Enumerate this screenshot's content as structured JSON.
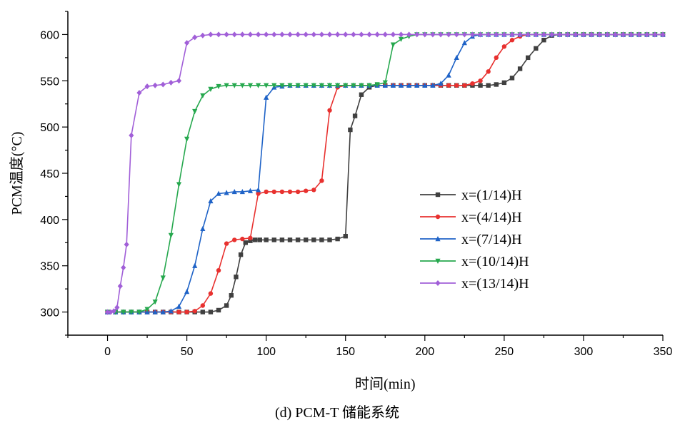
{
  "chart_data": {
    "type": "line",
    "title": "",
    "xlabel": "时间(min)",
    "ylabel": "PCM温度(°C)",
    "caption": "(d) PCM-T 储能系统",
    "xlim": [
      -25,
      350
    ],
    "ylim": [
      275,
      625
    ],
    "xticks": [
      0,
      50,
      100,
      150,
      200,
      250,
      300,
      350
    ],
    "yticks": [
      300,
      350,
      400,
      450,
      500,
      550,
      600
    ],
    "grid": false,
    "legend_position": "right-middle",
    "series": [
      {
        "name": "x=(1/14)H",
        "color": "#404040",
        "marker": "square",
        "x": [
          0,
          5,
          10,
          15,
          20,
          25,
          30,
          35,
          40,
          45,
          50,
          55,
          60,
          65,
          70,
          75,
          78,
          81,
          84,
          87,
          90,
          93,
          96,
          100,
          105,
          110,
          115,
          120,
          125,
          130,
          135,
          140,
          145,
          150,
          153,
          156,
          160,
          165,
          170,
          175,
          180,
          185,
          190,
          195,
          200,
          205,
          210,
          215,
          220,
          225,
          230,
          235,
          240,
          245,
          250,
          255,
          260,
          265,
          270,
          275,
          280,
          285,
          290,
          295,
          300,
          305,
          310,
          315,
          320,
          325,
          330,
          335,
          340,
          345,
          350
        ],
        "y": [
          300,
          300,
          300,
          300,
          300,
          300,
          300,
          300,
          300,
          300,
          300,
          300,
          300,
          300,
          302,
          307,
          318,
          338,
          362,
          375,
          377,
          378,
          378,
          378,
          378,
          378,
          378,
          378,
          378,
          378,
          378,
          378,
          379,
          382,
          497,
          512,
          535,
          543,
          545,
          545,
          545,
          545,
          545,
          545,
          545,
          545,
          545,
          545,
          545,
          545,
          545,
          545,
          545,
          546,
          548,
          553,
          563,
          575,
          585,
          594,
          599,
          600,
          600,
          600,
          600,
          600,
          600,
          600,
          600,
          600,
          600,
          600,
          600,
          600,
          600
        ]
      },
      {
        "name": "x=(4/14)H",
        "color": "#e8312f",
        "marker": "circle",
        "x": [
          0,
          5,
          10,
          15,
          20,
          25,
          30,
          35,
          40,
          45,
          50,
          55,
          60,
          65,
          70,
          75,
          80,
          85,
          90,
          95,
          100,
          105,
          110,
          115,
          120,
          125,
          130,
          135,
          140,
          145,
          150,
          155,
          160,
          165,
          170,
          175,
          180,
          185,
          190,
          195,
          200,
          205,
          210,
          215,
          220,
          225,
          230,
          235,
          240,
          245,
          250,
          255,
          260,
          265,
          270,
          275,
          280,
          285,
          290,
          295,
          300,
          305,
          310,
          315,
          320,
          325,
          330,
          335,
          340,
          345,
          350
        ],
        "y": [
          300,
          300,
          300,
          300,
          300,
          300,
          300,
          300,
          300,
          300,
          300,
          301,
          307,
          320,
          345,
          374,
          378,
          379,
          380,
          428,
          430,
          430,
          430,
          430,
          430,
          431,
          432,
          442,
          518,
          543,
          545,
          545,
          545,
          545,
          545,
          545,
          545,
          545,
          545,
          545,
          545,
          545,
          545,
          545,
          545,
          545,
          547,
          550,
          560,
          575,
          587,
          594,
          598,
          600,
          600,
          600,
          600,
          600,
          600,
          600,
          600,
          600,
          600,
          600,
          600,
          600,
          600,
          600,
          600,
          600,
          600
        ]
      },
      {
        "name": "x=(7/14)H",
        "color": "#1f63c7",
        "marker": "triangle-up",
        "x": [
          0,
          5,
          10,
          15,
          20,
          25,
          30,
          35,
          40,
          45,
          50,
          55,
          60,
          65,
          70,
          75,
          80,
          85,
          90,
          95,
          100,
          105,
          110,
          115,
          120,
          125,
          130,
          135,
          140,
          145,
          150,
          155,
          160,
          165,
          170,
          175,
          180,
          185,
          190,
          195,
          200,
          205,
          210,
          215,
          220,
          225,
          230,
          235,
          240,
          245,
          250,
          255,
          260,
          265,
          270,
          275,
          280,
          285,
          290,
          295,
          300,
          305,
          310,
          315,
          320,
          325,
          330,
          335,
          340,
          345,
          350
        ],
        "y": [
          300,
          300,
          300,
          300,
          300,
          300,
          300,
          300,
          301,
          306,
          322,
          350,
          390,
          420,
          428,
          429,
          430,
          430,
          431,
          432,
          532,
          543,
          544,
          545,
          545,
          545,
          545,
          545,
          545,
          545,
          545,
          545,
          545,
          545,
          545,
          545,
          545,
          545,
          545,
          545,
          545,
          545,
          547,
          556,
          575,
          591,
          598,
          600,
          600,
          600,
          600,
          600,
          600,
          600,
          600,
          600,
          600,
          600,
          600,
          600,
          600,
          600,
          600,
          600,
          600,
          600,
          600,
          600,
          600,
          600,
          600
        ]
      },
      {
        "name": "x=(10/14)H",
        "color": "#26a84e",
        "marker": "triangle-down",
        "x": [
          0,
          5,
          10,
          15,
          20,
          25,
          30,
          35,
          40,
          45,
          50,
          55,
          60,
          65,
          70,
          75,
          80,
          85,
          90,
          95,
          100,
          105,
          110,
          115,
          120,
          125,
          130,
          135,
          140,
          145,
          150,
          155,
          160,
          165,
          170,
          175,
          180,
          185,
          190,
          195,
          200,
          205,
          210,
          215,
          220,
          225,
          230,
          235,
          240,
          245,
          250,
          255,
          260,
          265,
          270,
          275,
          280,
          285,
          290,
          295,
          300,
          305,
          310,
          315,
          320,
          325,
          330,
          335,
          340,
          345,
          350
        ],
        "y": [
          300,
          300,
          300,
          300,
          300,
          303,
          311,
          337,
          383,
          438,
          487,
          517,
          534,
          541,
          544,
          545,
          545,
          545,
          545,
          545,
          545,
          545,
          545,
          545,
          545,
          545,
          545,
          545,
          545,
          545,
          545,
          545,
          545,
          545,
          546,
          548,
          589,
          595,
          598,
          600,
          600,
          600,
          600,
          600,
          600,
          600,
          600,
          600,
          600,
          600,
          600,
          600,
          600,
          600,
          600,
          600,
          600,
          600,
          600,
          600,
          600,
          600,
          600,
          600,
          600,
          600,
          600,
          600,
          600,
          600,
          600
        ]
      },
      {
        "name": "x=(13/14)H",
        "color": "#a15fd8",
        "marker": "diamond",
        "x": [
          0,
          2,
          4,
          6,
          8,
          10,
          12,
          15,
          20,
          25,
          30,
          35,
          40,
          45,
          50,
          55,
          60,
          65,
          70,
          75,
          80,
          85,
          90,
          95,
          100,
          105,
          110,
          115,
          120,
          125,
          130,
          135,
          140,
          145,
          150,
          155,
          160,
          165,
          170,
          175,
          180,
          185,
          190,
          195,
          200,
          205,
          210,
          215,
          220,
          225,
          230,
          235,
          240,
          245,
          250,
          255,
          260,
          265,
          270,
          275,
          280,
          285,
          290,
          295,
          300,
          305,
          310,
          315,
          320,
          325,
          330,
          335,
          340,
          345,
          350
        ],
        "y": [
          300,
          300,
          301,
          305,
          328,
          348,
          373,
          491,
          537,
          544,
          545,
          546,
          548,
          550,
          591,
          597,
          599,
          600,
          600,
          600,
          600,
          600,
          600,
          600,
          600,
          600,
          600,
          600,
          600,
          600,
          600,
          600,
          600,
          600,
          600,
          600,
          600,
          600,
          600,
          600,
          600,
          600,
          600,
          600,
          600,
          600,
          600,
          600,
          600,
          600,
          600,
          600,
          600,
          600,
          600,
          600,
          600,
          600,
          600,
          600,
          600,
          600,
          600,
          600,
          600,
          600,
          600,
          600,
          600,
          600,
          600,
          600,
          600,
          600,
          600
        ]
      }
    ]
  }
}
